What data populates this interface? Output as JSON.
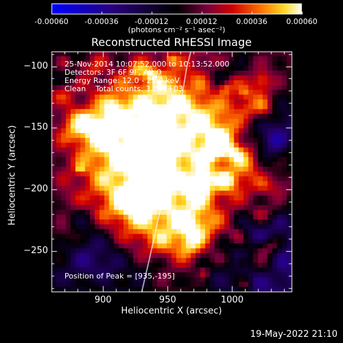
{
  "timestamp": "19-May-2022 21:10",
  "chart_data": {
    "type": "heatmap",
    "title": "Reconstructed RHESSI Image",
    "xlabel": "Heliocentric X (arcsec)",
    "ylabel": "Heliocentric Y (arcsec)",
    "xlim": [
      860,
      1046
    ],
    "ylim": [
      -283,
      -88
    ],
    "xticks": [
      900,
      950,
      1000
    ],
    "yticks": [
      -100,
      -150,
      -200,
      -250
    ],
    "colorbar": {
      "label": "(photons cm⁻² s⁻¹ asec⁻²)",
      "range": [
        -0.0006,
        0.0006
      ],
      "ticks": [
        "-0.00060",
        "-0.00036",
        "-0.00012",
        "0.00012",
        "0.00036",
        "0.00060"
      ]
    },
    "annotations": [
      "25-Nov-2014 10:07:52.000 to 10:13:52.000",
      "Detectors: 3F 6F 9F, Att 0",
      "Energy Range: 12.0 - 25.0 keV",
      "Clean    Total counts: 3.05E+03"
    ],
    "peak_label": "Position of Peak = [935,-195]",
    "peak": [
      935,
      -195
    ],
    "solar_limb": true
  }
}
